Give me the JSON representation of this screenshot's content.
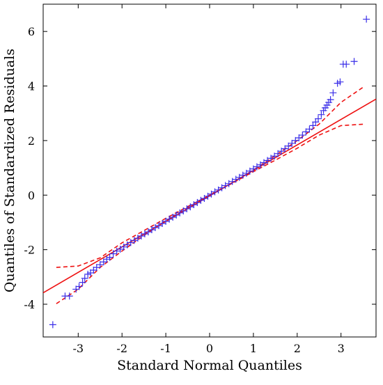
{
  "chart_data": {
    "type": "scatter",
    "title": "",
    "xlabel": "Standard Normal Quantiles",
    "ylabel": "Quantiles of Standardized Residuals",
    "xlim": [
      -3.8,
      3.8
    ],
    "ylim": [
      -5.2,
      7.0
    ],
    "x_ticks": [
      -3,
      -2,
      -1,
      0,
      1,
      2,
      3
    ],
    "x_tick_labels": [
      "-3",
      "-2",
      "-1",
      "0",
      "1",
      "2",
      "3"
    ],
    "y_ticks": [
      -4,
      -2,
      0,
      2,
      4,
      6
    ],
    "y_tick_labels": [
      "-4",
      "-2",
      "0",
      "2",
      "4",
      "6"
    ],
    "grid": false,
    "colors": {
      "points": "#3a2ee8",
      "reference_line": "#ee1111",
      "confidence_band": "#ee1111"
    },
    "series": [
      {
        "kind": "points",
        "marker": "plus",
        "x": [
          -3.58,
          -3.3,
          -3.2,
          -3.05,
          -2.98,
          -2.9,
          -2.85,
          -2.78,
          -2.72,
          -2.65,
          -2.58,
          -2.5,
          -2.42,
          -2.35,
          -2.28,
          -2.2,
          -2.12,
          -2.04,
          -1.96,
          -1.88,
          -1.8,
          -1.72,
          -1.64,
          -1.56,
          -1.48,
          -1.4,
          -1.32,
          -1.24,
          -1.16,
          -1.08,
          -1.0,
          -0.92,
          -0.84,
          -0.76,
          -0.68,
          -0.6,
          -0.52,
          -0.44,
          -0.36,
          -0.28,
          -0.2,
          -0.12,
          -0.04,
          0.04,
          0.12,
          0.2,
          0.28,
          0.36,
          0.44,
          0.52,
          0.6,
          0.68,
          0.76,
          0.84,
          0.92,
          1.0,
          1.08,
          1.16,
          1.24,
          1.32,
          1.4,
          1.48,
          1.56,
          1.64,
          1.72,
          1.8,
          1.88,
          1.96,
          2.04,
          2.12,
          2.2,
          2.28,
          2.36,
          2.42,
          2.48,
          2.55,
          2.6,
          2.64,
          2.68,
          2.72,
          2.76,
          2.82,
          2.92,
          2.98,
          3.05,
          3.12,
          3.3,
          3.58
        ],
        "y": [
          -4.75,
          -3.7,
          -3.7,
          -3.45,
          -3.35,
          -3.2,
          -3.05,
          -2.9,
          -2.85,
          -2.75,
          -2.65,
          -2.55,
          -2.45,
          -2.35,
          -2.28,
          -2.15,
          -2.05,
          -1.98,
          -1.9,
          -1.82,
          -1.74,
          -1.66,
          -1.58,
          -1.5,
          -1.42,
          -1.35,
          -1.27,
          -1.19,
          -1.12,
          -1.04,
          -0.96,
          -0.88,
          -0.81,
          -0.73,
          -0.65,
          -0.58,
          -0.5,
          -0.43,
          -0.35,
          -0.27,
          -0.19,
          -0.12,
          -0.04,
          0.04,
          0.12,
          0.19,
          0.27,
          0.35,
          0.42,
          0.5,
          0.58,
          0.65,
          0.73,
          0.8,
          0.88,
          0.96,
          1.04,
          1.11,
          1.19,
          1.27,
          1.35,
          1.43,
          1.52,
          1.61,
          1.7,
          1.8,
          1.9,
          2.0,
          2.1,
          2.2,
          2.32,
          2.42,
          2.55,
          2.68,
          2.8,
          2.95,
          3.1,
          3.2,
          3.3,
          3.4,
          3.5,
          3.75,
          4.1,
          4.15,
          4.8,
          4.8,
          4.9,
          6.45
        ]
      },
      {
        "kind": "reference_line",
        "style": "solid",
        "x": [
          -3.8,
          3.8
        ],
        "y": [
          -3.58,
          3.52
        ]
      },
      {
        "kind": "upper_band",
        "style": "dashed",
        "x": [
          -3.5,
          -3.0,
          -2.5,
          -2.0,
          -1.5,
          -1.0,
          -0.5,
          0.0,
          0.5,
          1.0,
          1.5,
          2.0,
          2.5,
          3.0,
          3.5
        ],
        "y": [
          -2.65,
          -2.6,
          -2.3,
          -1.75,
          -1.3,
          -0.85,
          -0.42,
          0.0,
          0.44,
          0.92,
          1.45,
          2.0,
          2.6,
          3.4,
          3.95
        ]
      },
      {
        "kind": "lower_band",
        "style": "dashed",
        "x": [
          -3.5,
          -3.0,
          -2.5,
          -2.0,
          -1.5,
          -1.0,
          -0.5,
          0.0,
          0.5,
          1.0,
          1.5,
          2.0,
          2.5,
          3.0,
          3.5
        ],
        "y": [
          -3.98,
          -3.45,
          -2.65,
          -2.05,
          -1.48,
          -0.94,
          -0.46,
          0.0,
          0.42,
          0.86,
          1.28,
          1.72,
          2.2,
          2.55,
          2.6
        ]
      }
    ]
  }
}
